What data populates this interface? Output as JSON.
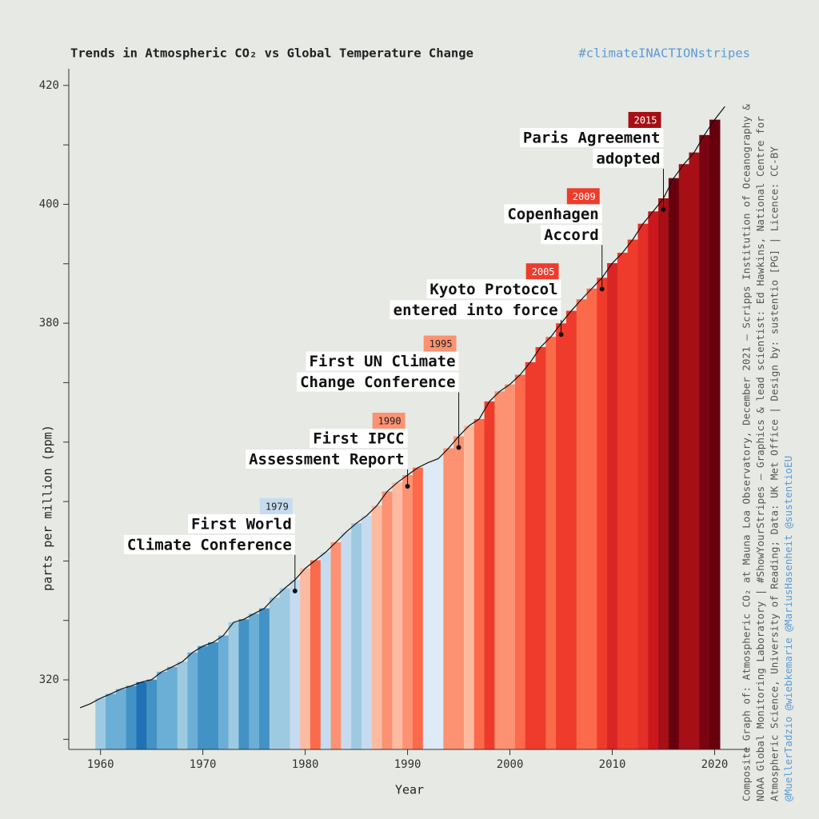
{
  "chart_data": {
    "type": "stripes-line",
    "title": "Trends in Atmospheric CO₂ vs Global Temperature Change",
    "hashtag": "#climateINACTIONstripes",
    "xlabel": "Year",
    "ylabel": "parts per million (ppm)",
    "xlim": [
      1956.9,
      2023.4
    ],
    "ylim": [
      308.3,
      422.8
    ],
    "xticks": [
      1960,
      1970,
      1980,
      1990,
      2000,
      2010,
      2020
    ],
    "yticks": [
      320,
      380,
      400,
      420
    ],
    "yminorticks": [
      310,
      330,
      340,
      350,
      360,
      370,
      390,
      410
    ],
    "line_color": "#111111",
    "series": [
      {
        "name": "Atmospheric CO₂",
        "x": [
          1958,
          1959,
          1960,
          1961,
          1962,
          1963,
          1964,
          1965,
          1966,
          1967,
          1968,
          1969,
          1970,
          1971,
          1972,
          1973,
          1974,
          1975,
          1976,
          1977,
          1978,
          1979,
          1980,
          1981,
          1982,
          1983,
          1984,
          1985,
          1986,
          1987,
          1988,
          1989,
          1990,
          1991,
          1992,
          1993,
          1994,
          1995,
          1996,
          1997,
          1998,
          1999,
          2000,
          2001,
          2002,
          2003,
          2004,
          2005,
          2006,
          2007,
          2008,
          2009,
          2010,
          2011,
          2012,
          2013,
          2014,
          2015,
          2016,
          2017,
          2018,
          2019,
          2020,
          2021
        ],
        "values": [
          315.3,
          315.98,
          316.91,
          317.64,
          318.45,
          318.99,
          319.62,
          320.04,
          321.37,
          322.18,
          323.05,
          324.62,
          325.68,
          326.32,
          327.46,
          329.68,
          330.19,
          331.13,
          332.03,
          333.84,
          335.41,
          336.84,
          338.76,
          340.12,
          341.48,
          343.15,
          344.87,
          346.35,
          347.61,
          349.31,
          351.69,
          353.2,
          354.45,
          355.7,
          356.54,
          357.21,
          358.96,
          360.97,
          362.74,
          363.88,
          366.84,
          368.54,
          369.71,
          371.32,
          373.45,
          375.98,
          377.7,
          379.98,
          382.09,
          384.02,
          385.83,
          387.64,
          390.1,
          391.85,
          394.06,
          396.74,
          398.81,
          401.01,
          404.41,
          406.76,
          408.72,
          411.66,
          414.24,
          416.45
        ],
        "stripe_colors": [
          null,
          null,
          "#9ecae1",
          "#6baed6",
          "#6baed6",
          "#4292c6",
          "#2171b5",
          "#4292c6",
          "#6baed6",
          "#6baed6",
          "#9ecae1",
          "#6baed6",
          "#4292c6",
          "#4292c6",
          "#6baed6",
          "#9ecae1",
          "#4292c6",
          "#6baed6",
          "#4292c6",
          "#9ecae1",
          "#9ecae1",
          "#c6dbef",
          "#fcbba1",
          "#fb6a4a",
          "#c6dbef",
          "#fc9272",
          "#c6dbef",
          "#9ecae1",
          "#c6dbef",
          "#fcbba1",
          "#fc9272",
          "#fcbba1",
          "#fc9272",
          "#fb6a4a",
          "#deebf7",
          "#deebf7",
          "#fc9272",
          "#fc9272",
          "#fcbba1",
          "#fb6a4a",
          "#ef3b2c",
          "#fc9272",
          "#fc9272",
          "#fb6a4a",
          "#ef3b2c",
          "#ef3b2c",
          "#fb6a4a",
          "#ef3b2c",
          "#ef3b2c",
          "#fb6a4a",
          "#fb6a4a",
          "#ef3b2c",
          "#d92523",
          "#ef3b2c",
          "#ef3b2c",
          "#e32f27",
          "#cb181d",
          "#a50f15",
          "#67000d",
          "#a50f15",
          "#a50f15",
          "#7a0510",
          "#67000d",
          null
        ]
      }
    ],
    "annotations": [
      {
        "year": 1979,
        "lines": [
          "First World",
          "Climate Conference"
        ]
      },
      {
        "year": 1990,
        "lines": [
          "First IPCC",
          "Assessment Report"
        ]
      },
      {
        "year": 1995,
        "lines": [
          "First UN Climate",
          "Change Conference"
        ]
      },
      {
        "year": 2005,
        "lines": [
          "Kyoto Protocol",
          "entered into force"
        ]
      },
      {
        "year": 2009,
        "lines": [
          "Copenhagen",
          "Accord"
        ]
      },
      {
        "year": 2015,
        "lines": [
          "Paris Agreement",
          "adopted"
        ]
      }
    ],
    "credits": [
      "Composite Graph of: Atmospheric CO₂ at Mauna Loa Observatory, December 2021 – Scripps Institution of Oceanography &",
      "NOAA Global Monitoring Laboratory | #ShowYourStripes – Graphics & lead scientist: Ed Hawkins, National Centre for",
      "Atmospheric Science, University of Reading; Data: UK Met Office | Design by: sustentio [PG] | Licence: CC-BY",
      "@MuellerTadzio @wiebkemarie @MariusHasenheit @sustentioEU"
    ]
  }
}
